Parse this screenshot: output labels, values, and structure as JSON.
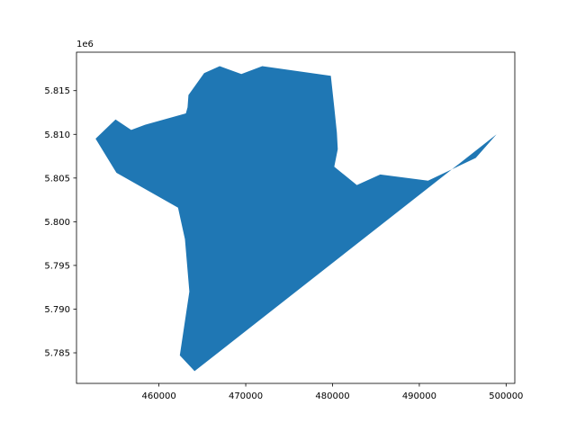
{
  "chart_data": {
    "type": "area",
    "title": "",
    "xlabel": "",
    "ylabel": "",
    "y_offset_text": "1e6",
    "xlim": [
      450500,
      501000
    ],
    "ylim": [
      5781500,
      5819400
    ],
    "grid": false,
    "x_ticks": [
      460000,
      470000,
      480000,
      490000,
      500000
    ],
    "x_tick_labels": [
      "460000",
      "470000",
      "480000",
      "490000",
      "500000"
    ],
    "y_ticks": [
      5785000,
      5790000,
      5795000,
      5800000,
      5805000,
      5810000,
      5815000
    ],
    "y_tick_labels": [
      "5.785",
      "5.790",
      "5.795",
      "5.800",
      "5.805",
      "5.810",
      "5.815"
    ],
    "series": [
      {
        "fill_color": "#1f77b4",
        "points": [
          [
            452700,
            5809500
          ],
          [
            455000,
            5811700
          ],
          [
            456800,
            5810500
          ],
          [
            458400,
            5811100
          ],
          [
            463100,
            5812400
          ],
          [
            463300,
            5813100
          ],
          [
            463400,
            5814500
          ],
          [
            465200,
            5817000
          ],
          [
            467000,
            5817800
          ],
          [
            469500,
            5816900
          ],
          [
            471900,
            5817800
          ],
          [
            479800,
            5816700
          ],
          [
            480200,
            5813100
          ],
          [
            480500,
            5810200
          ],
          [
            480600,
            5808300
          ],
          [
            480200,
            5806300
          ],
          [
            482800,
            5804200
          ],
          [
            485500,
            5805400
          ],
          [
            491000,
            5804700
          ],
          [
            496500,
            5807300
          ],
          [
            498900,
            5810000
          ],
          [
            464100,
            5782900
          ],
          [
            462400,
            5784700
          ],
          [
            463500,
            5792000
          ],
          [
            463000,
            5798000
          ],
          [
            462200,
            5801600
          ],
          [
            455100,
            5805600
          ]
        ]
      }
    ]
  }
}
